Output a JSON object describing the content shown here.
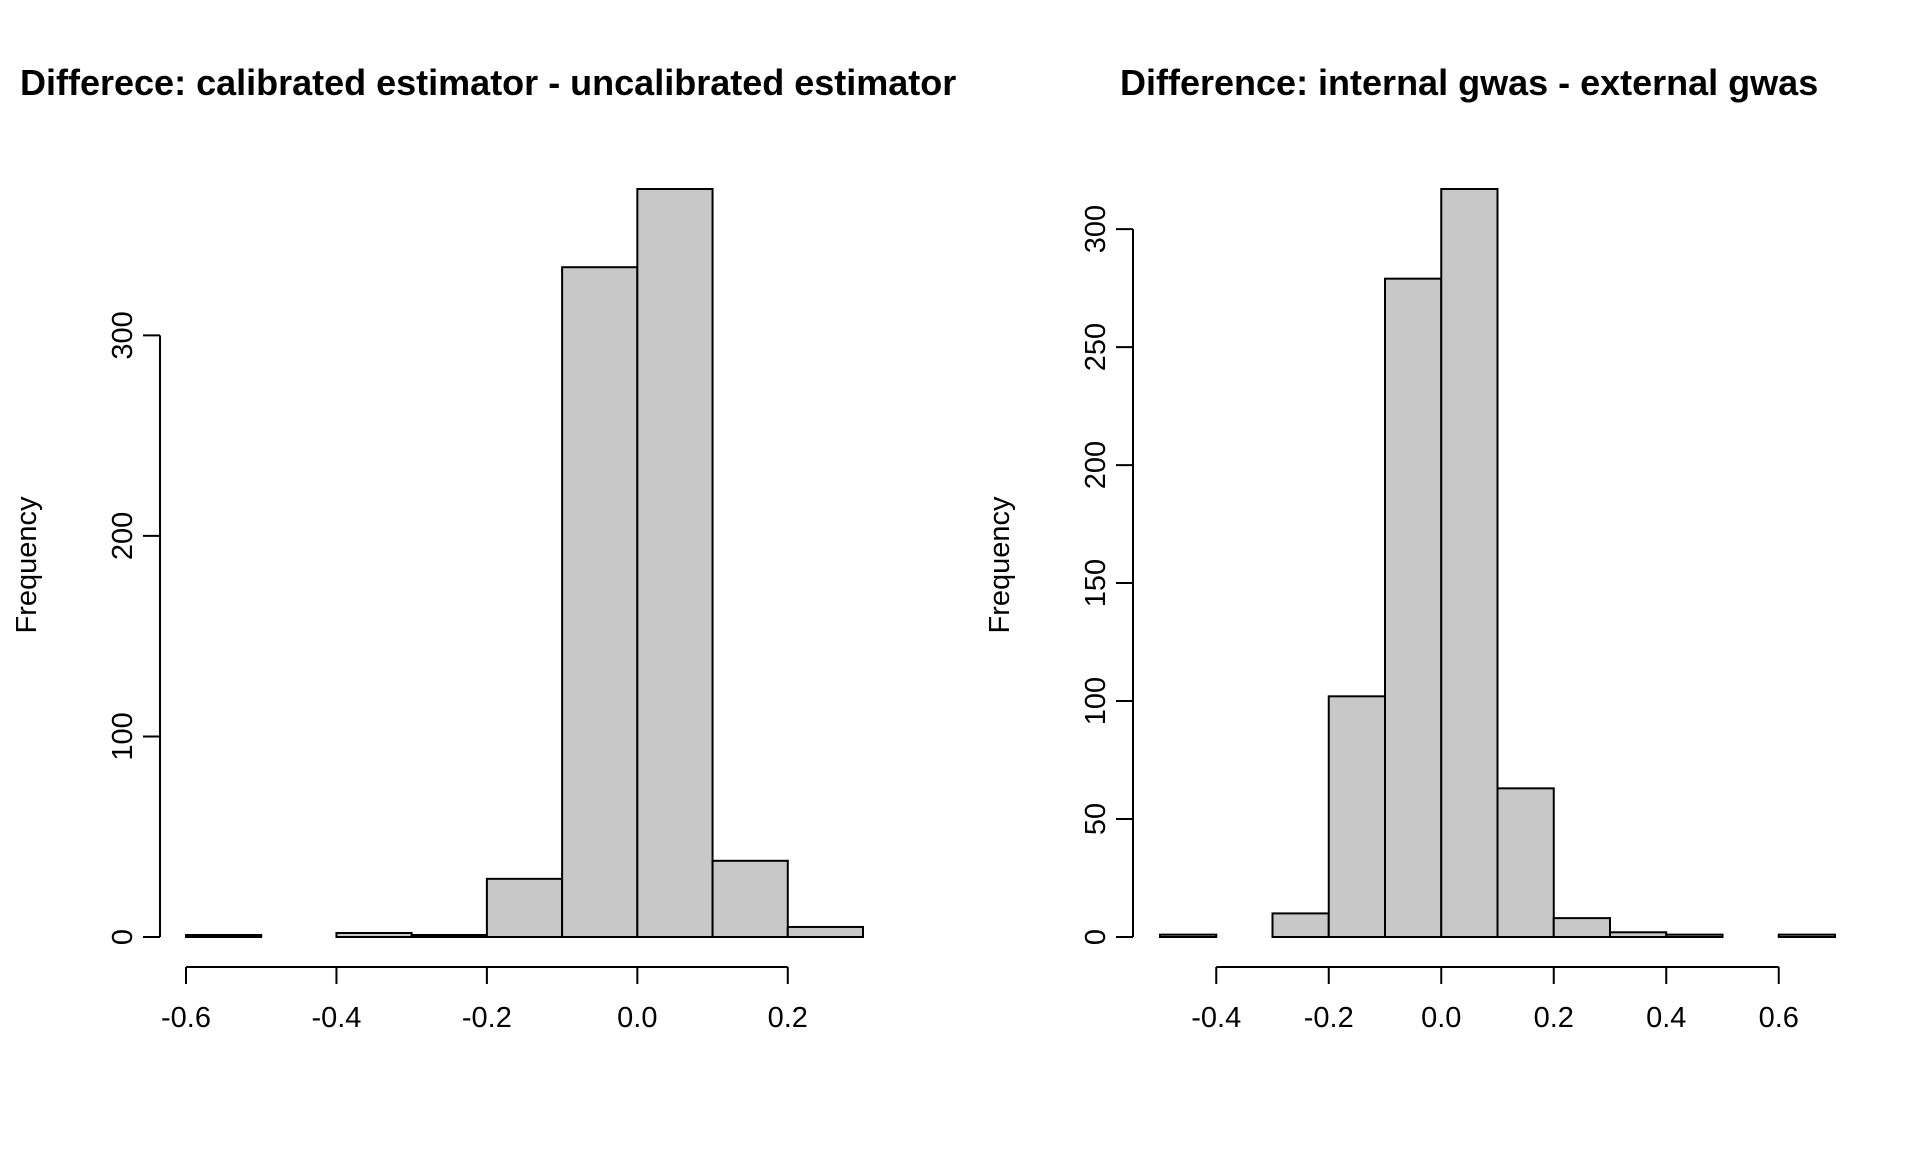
{
  "chart_data": [
    {
      "type": "bar",
      "title": "Differece: calibrated estimator - uncalibrated estimator",
      "xlabel": "",
      "ylabel": "Frequency",
      "bar_color": "#c8c8c8",
      "bins": [
        {
          "x0": -0.6,
          "x1": -0.5,
          "count": 1
        },
        {
          "x0": -0.5,
          "x1": -0.4,
          "count": 0
        },
        {
          "x0": -0.4,
          "x1": -0.3,
          "count": 2
        },
        {
          "x0": -0.3,
          "x1": -0.2,
          "count": 1
        },
        {
          "x0": -0.2,
          "x1": -0.1,
          "count": 29
        },
        {
          "x0": -0.1,
          "x1": 0.0,
          "count": 334
        },
        {
          "x0": 0.0,
          "x1": 0.1,
          "count": 373
        },
        {
          "x0": 0.1,
          "x1": 0.2,
          "count": 38
        },
        {
          "x0": 0.2,
          "x1": 0.3,
          "count": 5
        }
      ],
      "xlim": [
        -0.6,
        0.3
      ],
      "ylim": [
        0,
        373
      ],
      "xticks": [
        -0.6,
        -0.4,
        -0.2,
        0.0,
        0.2
      ],
      "xtick_labels": [
        "-0.6",
        "-0.4",
        "-0.2",
        "0.0",
        "0.2"
      ],
      "yticks": [
        0,
        100,
        200,
        300
      ],
      "ytick_labels": [
        "0",
        "100",
        "200",
        "300"
      ],
      "grid": false,
      "legend": "none"
    },
    {
      "type": "bar",
      "title": "Difference: internal gwas - external gwas",
      "xlabel": "",
      "ylabel": "Frequency",
      "bar_color": "#c8c8c8",
      "bins": [
        {
          "x0": -0.5,
          "x1": -0.4,
          "count": 1
        },
        {
          "x0": -0.4,
          "x1": -0.3,
          "count": 0
        },
        {
          "x0": -0.3,
          "x1": -0.2,
          "count": 10
        },
        {
          "x0": -0.2,
          "x1": -0.1,
          "count": 102
        },
        {
          "x0": -0.1,
          "x1": 0.0,
          "count": 279
        },
        {
          "x0": 0.0,
          "x1": 0.1,
          "count": 317
        },
        {
          "x0": 0.1,
          "x1": 0.2,
          "count": 63
        },
        {
          "x0": 0.2,
          "x1": 0.3,
          "count": 8
        },
        {
          "x0": 0.3,
          "x1": 0.4,
          "count": 2
        },
        {
          "x0": 0.4,
          "x1": 0.5,
          "count": 1
        },
        {
          "x0": 0.5,
          "x1": 0.6,
          "count": 0
        },
        {
          "x0": 0.6,
          "x1": 0.7,
          "count": 1
        }
      ],
      "xlim": [
        -0.5,
        0.7
      ],
      "ylim": [
        0,
        317
      ],
      "xticks": [
        -0.4,
        -0.2,
        0.0,
        0.2,
        0.4,
        0.6
      ],
      "xtick_labels": [
        "-0.4",
        "-0.2",
        "0.0",
        "0.2",
        "0.4",
        "0.6"
      ],
      "yticks": [
        0,
        50,
        100,
        150,
        200,
        250,
        300
      ],
      "ytick_labels": [
        "0",
        "50",
        "100",
        "150",
        "200",
        "250",
        "300"
      ],
      "grid": false,
      "legend": "none"
    }
  ]
}
